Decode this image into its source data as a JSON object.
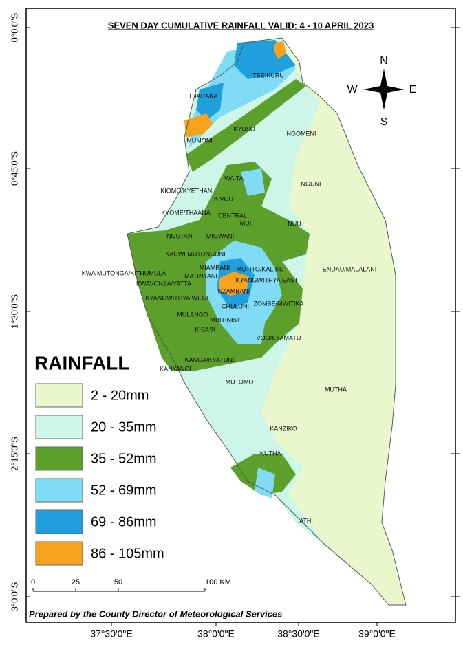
{
  "title": "SEVEN DAY CUMULATIVE RAINFALL VALID: 4 - 10 APRIL 2023",
  "legend": {
    "title": "RAINFALL",
    "items": [
      {
        "label": "2 - 20mm",
        "color": "#eaf6cb"
      },
      {
        "label": "20 - 35mm",
        "color": "#cdf5e8"
      },
      {
        "label": "35 - 52mm",
        "color": "#5c9f2a"
      },
      {
        "label": "52 - 69mm",
        "color": "#80dcf5"
      },
      {
        "label": "69 - 86mm",
        "color": "#1fa0dc"
      },
      {
        "label": "86 - 105mm",
        "color": "#f5a31c"
      }
    ]
  },
  "latitude_labels": [
    "0°0'0\"S",
    "0°45'0\"S",
    "1°30'0\"S",
    "2°15'0\"S",
    "3°0'0\"S"
  ],
  "longitude_labels": [
    "37°30'0\"E",
    "38°0'0\"E",
    "38°30'0\"E",
    "39°0'0\"E"
  ],
  "scale_bar": [
    "0",
    "25",
    "50",
    "100 KM"
  ],
  "compass": {
    "north": "N",
    "east": "E",
    "south": "S",
    "west": "W"
  },
  "wards": [
    "TSEIKURU",
    "THARAKA",
    "KYUSO",
    "NGOMENI",
    "MUMONI",
    "WAITA",
    "NGUNI",
    "KIOMO/KYETHANI",
    "KIVOU",
    "KYOME/THAANA",
    "CENTRAL",
    "MUI",
    "NUU",
    "NGUTANI",
    "MIGWANI",
    "MUTONGUNI",
    "KAUWI",
    "MIAMBANI",
    "MUTITO/KALIKU",
    "ENDAU/MALALANI",
    "KWA MUTONGA/KITHUMULA",
    "MATINYANI",
    "KYANGWITHYA EAST",
    "KWAVONZA/YATTA",
    "NZAMBANI",
    "KYANGWITHYA WEST",
    "CHULUNI",
    "ZOMBE/MWITIKA",
    "MULANGO",
    "MBITINI",
    "Text",
    "KISASI",
    "VOO/KYAMATU",
    "IKANGA/KYATUNE",
    "KANYANGI",
    "MUTOMO",
    "MUTHA",
    "KANZIKO",
    "IKUTHA",
    "ATHI"
  ],
  "credit": "Prepared by the County Director of Meteorological Services"
}
